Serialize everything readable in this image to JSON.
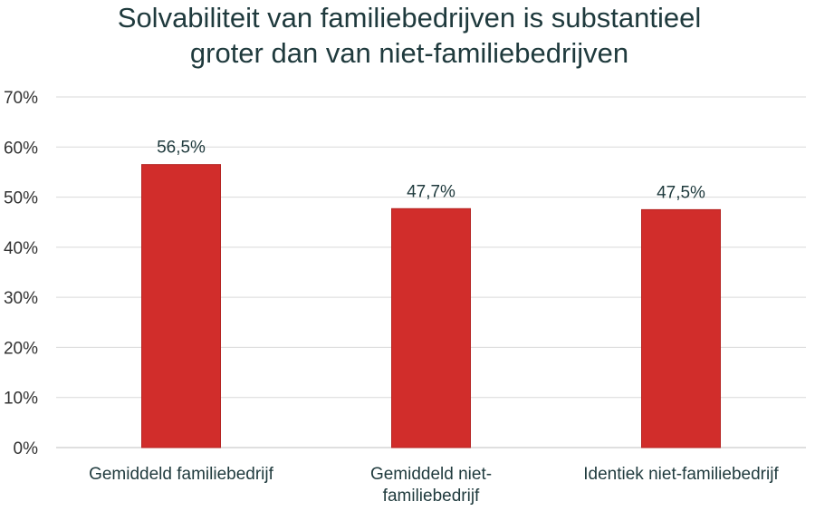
{
  "chart_data": {
    "type": "bar",
    "title_lines": [
      "Solvabiliteit van familiebedrijven is substantieel",
      "groter dan van niet-familiebedrijven"
    ],
    "categories": [
      [
        "Gemiddeld familiebedrijf"
      ],
      [
        "Gemiddeld niet-",
        "familiebedrijf"
      ],
      [
        "Identiek niet-familiebedrijf"
      ]
    ],
    "values": [
      56.5,
      47.7,
      47.5
    ],
    "data_labels": [
      "56,5%",
      "47,7%",
      "47,5%"
    ],
    "ylim": [
      0,
      70
    ],
    "yticks": [
      0,
      10,
      20,
      30,
      40,
      50,
      60,
      70
    ],
    "ytick_labels": [
      "0%",
      "10%",
      "20%",
      "30%",
      "40%",
      "50%",
      "60%",
      "70%"
    ],
    "grid": true,
    "legend": "none",
    "bar_color": "#d12d2b"
  }
}
